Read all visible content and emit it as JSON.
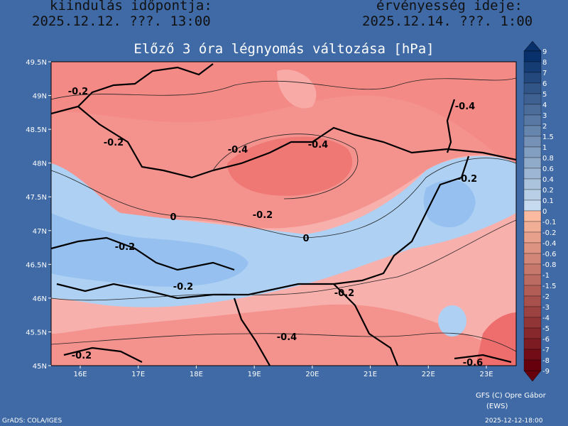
{
  "header": {
    "start_label": "kiindulás időpontja:",
    "start_time": "2025.12.12. ???. 13:00",
    "valid_label": "érvényesség ideje:",
    "valid_time": "2025.12.14. ???. 1:00"
  },
  "title": "Előző 3 óra légnyomás változása [hPa]",
  "map": {
    "lat_labels": [
      "49.5N",
      "49N",
      "48.5N",
      "48N",
      "47.5N",
      "47N",
      "46.5N",
      "46N",
      "45.5N",
      "45N"
    ],
    "lon_labels": [
      "16E",
      "17E",
      "18E",
      "19E",
      "20E",
      "21E",
      "22E",
      "23E"
    ],
    "contour_labels": [
      "-0.2",
      "-0.2",
      "-0.4",
      "-0.4",
      "-0.4",
      "-0.2",
      "0",
      "-0.2",
      "0",
      "-0.2",
      "-0.2",
      "-0.2",
      "-0.4",
      "-0.2",
      "-0.6"
    ]
  },
  "colorbar": {
    "levels": [
      "9",
      "8",
      "7",
      "6",
      "5",
      "4",
      "3",
      "2",
      "1.5",
      "1",
      "0.8",
      "0.6",
      "0.4",
      "0.2",
      "0.1",
      "0",
      "-0.1",
      "-0.2",
      "-0.4",
      "-0.6",
      "-0.8",
      "-1",
      "-1.5",
      "-2",
      "-3",
      "-4",
      "-5",
      "-6",
      "-7",
      "-8",
      "-9"
    ]
  },
  "footer": {
    "credit": "GFS (C) Opre Gábor",
    "credit_sub": "(EWS)",
    "software": "GrADS: COLA/IGES",
    "timestamp": "2025-12-12-18:00"
  }
}
